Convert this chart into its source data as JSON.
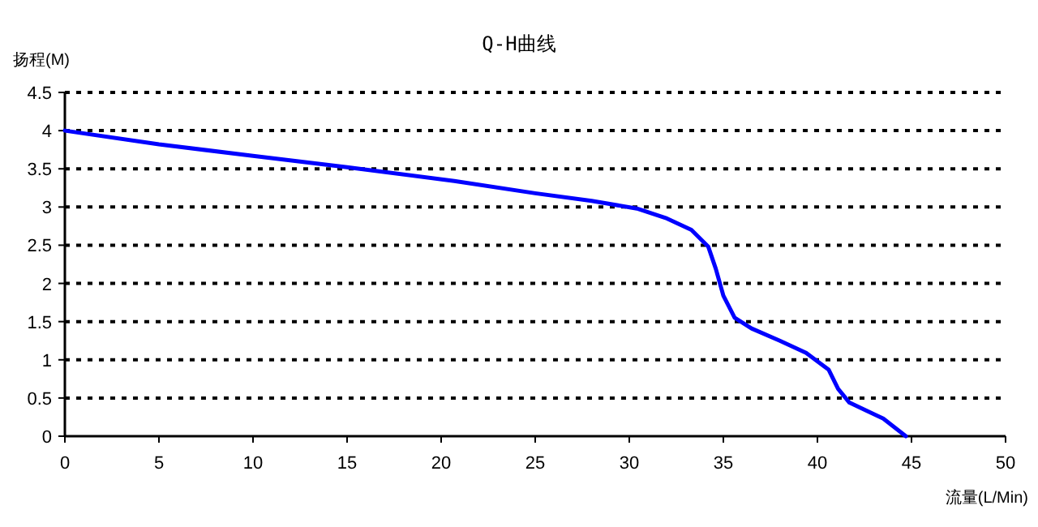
{
  "chart_data": {
    "type": "line",
    "title": "Q-H曲线",
    "xlabel": "流量(L/Min)",
    "ylabel": "扬程(M)",
    "xlim": [
      0,
      50
    ],
    "xticks": [
      0,
      5,
      10,
      15,
      20,
      25,
      30,
      35,
      40,
      45,
      50
    ],
    "ylim": [
      0,
      4.5
    ],
    "yticks": [
      0,
      0.5,
      1,
      1.5,
      2,
      2.5,
      3,
      3.5,
      4,
      4.5
    ],
    "grid": "y",
    "marker": "none",
    "line_style": "solid",
    "series": [
      {
        "color": "#0000ff",
        "x": [
          0,
          5,
          10,
          15,
          20.7,
          25,
          28,
          30.4,
          32,
          33.3,
          34.2,
          34.6,
          35.0,
          35.6,
          36.5,
          38,
          39.4,
          40.6,
          41.1,
          41.7,
          43.5,
          44.7
        ],
        "values": [
          4.0,
          3.82,
          3.67,
          3.52,
          3.34,
          3.18,
          3.08,
          2.98,
          2.85,
          2.7,
          2.48,
          2.19,
          1.84,
          1.55,
          1.41,
          1.25,
          1.09,
          0.87,
          0.62,
          0.44,
          0.23,
          0
        ]
      }
    ]
  }
}
